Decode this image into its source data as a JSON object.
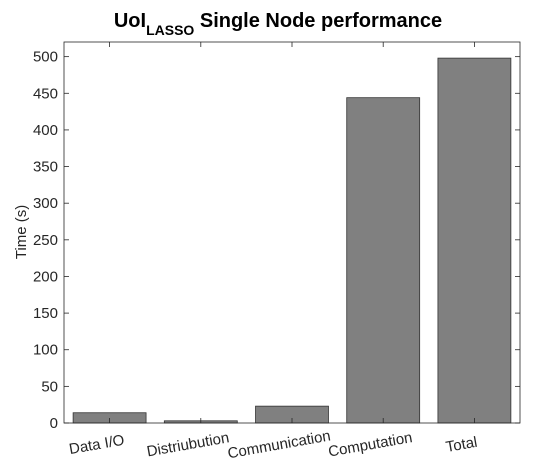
{
  "chart_data": {
    "type": "bar",
    "title": {
      "main": "UoI",
      "subscript": "LASSO",
      "rest": " Single Node performance"
    },
    "xlabel": "",
    "ylabel": "Time (s)",
    "categories": [
      "Data I/O",
      "Distriubution",
      "Communication",
      "Computation",
      "Total"
    ],
    "values": [
      14,
      3,
      23,
      444,
      498
    ],
    "ylim": [
      0,
      520
    ],
    "yticks": [
      0,
      50,
      100,
      150,
      200,
      250,
      300,
      350,
      400,
      450,
      500
    ],
    "grid": false,
    "bar_color": "#808080",
    "bar_edge_color": "#333333"
  }
}
